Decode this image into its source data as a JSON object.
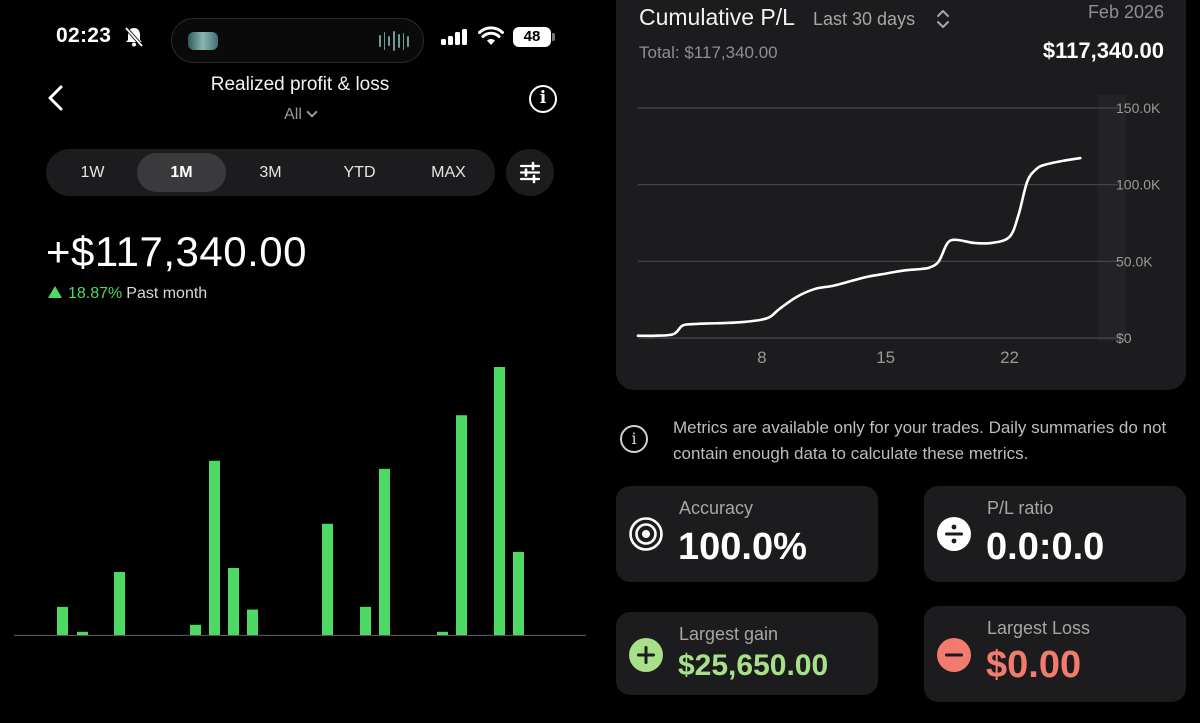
{
  "status_bar": {
    "time": "02:23",
    "battery": "48"
  },
  "header": {
    "title": "Realized profit & loss",
    "filter": "All"
  },
  "ranges": [
    "1W",
    "1M",
    "3M",
    "YTD",
    "MAX"
  ],
  "active_range": "1M",
  "summary": {
    "amount": "+$117,340.00",
    "change_pct": "18.87%",
    "period": "Past month"
  },
  "daily_bars": {
    "type": "bar",
    "values": [
      0.105,
      0.012,
      0.235,
      0.038,
      0.65,
      0.25,
      0.095,
      0.415,
      0.105,
      0.62,
      0.012,
      0.82,
      1.0,
      0.31
    ],
    "color": "#4cd964"
  },
  "cumulative": {
    "title": "Cumulative P/L",
    "range_label": "Last 30 days",
    "date_label": "Feb 2026",
    "total_label": "Total: $117,340.00",
    "total_value": "$117,340.00"
  },
  "chart_data": {
    "type": "line",
    "title": "Cumulative P/L",
    "y_ticks": [
      "150.0K",
      "100.0K",
      "50.0K",
      "$0"
    ],
    "x_ticks": [
      "8",
      "15",
      "22"
    ],
    "ylim": [
      0,
      150000
    ],
    "xlim": [
      1,
      27
    ],
    "points": [
      [
        1,
        1500
      ],
      [
        2,
        1500
      ],
      [
        3,
        2500
      ],
      [
        3.5,
        8000
      ],
      [
        4,
        9000
      ],
      [
        5,
        9500
      ],
      [
        6,
        9800
      ],
      [
        7,
        10500
      ],
      [
        8,
        12000
      ],
      [
        8.5,
        14000
      ],
      [
        9,
        19000
      ],
      [
        10,
        27000
      ],
      [
        11,
        32000
      ],
      [
        12,
        34000
      ],
      [
        13,
        37000
      ],
      [
        14,
        40000
      ],
      [
        15,
        42000
      ],
      [
        16,
        44000
      ],
      [
        17,
        45000
      ],
      [
        17.5,
        46000
      ],
      [
        18,
        50000
      ],
      [
        18.5,
        62000
      ],
      [
        19,
        64000
      ],
      [
        20,
        62000
      ],
      [
        21,
        62000
      ],
      [
        22,
        66000
      ],
      [
        22.5,
        80000
      ],
      [
        23,
        102000
      ],
      [
        23.5,
        110000
      ],
      [
        24,
        113000
      ],
      [
        25,
        115500
      ],
      [
        26,
        117340
      ]
    ],
    "grid": true,
    "color": "#ffffff"
  },
  "notice": "Metrics are available only for your trades. Daily summaries do not contain enough data to calculate these metrics.",
  "metrics": {
    "accuracy": {
      "label": "Accuracy",
      "value": "100.0%"
    },
    "pl_ratio": {
      "label": "P/L ratio",
      "value": "0.0:0.0"
    },
    "largest_gain": {
      "label": "Largest gain",
      "value": "$25,650.00",
      "color": "#a8e08a"
    },
    "largest_loss": {
      "label": "Largest Loss",
      "value": "$0.00",
      "color": "#f27a6e"
    }
  }
}
